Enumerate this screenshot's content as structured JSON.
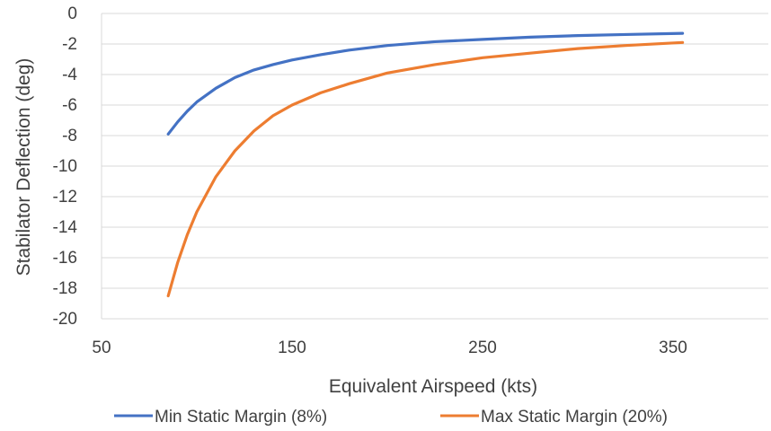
{
  "chart_data": {
    "type": "line",
    "title": "",
    "xlabel": "Equivalent Airspeed (kts)",
    "ylabel": "Stabilator Deflection (deg)",
    "xlim": [
      50,
      400
    ],
    "ylim": [
      -20,
      0
    ],
    "xticks": [
      50,
      150,
      250,
      350
    ],
    "yticks": [
      0,
      -2,
      -4,
      -6,
      -8,
      -10,
      -12,
      -14,
      -16,
      -18,
      -20
    ],
    "grid": "horizontal",
    "legend_position": "bottom",
    "series": [
      {
        "name": "Min Static Margin (8%)",
        "color": "#4472C4",
        "x": [
          85,
          90,
          95,
          100,
          110,
          120,
          130,
          140,
          150,
          165,
          180,
          200,
          225,
          250,
          275,
          300,
          325,
          355
        ],
        "y": [
          -7.9,
          -7.1,
          -6.4,
          -5.8,
          -4.9,
          -4.2,
          -3.7,
          -3.35,
          -3.05,
          -2.7,
          -2.4,
          -2.1,
          -1.85,
          -1.7,
          -1.55,
          -1.45,
          -1.38,
          -1.3
        ]
      },
      {
        "name": "Max Static Margin (20%)",
        "color": "#ED7D31",
        "x": [
          85,
          90,
          95,
          100,
          110,
          120,
          130,
          140,
          150,
          165,
          180,
          200,
          225,
          250,
          275,
          300,
          325,
          355
        ],
        "y": [
          -18.5,
          -16.3,
          -14.5,
          -13.0,
          -10.7,
          -9.0,
          -7.7,
          -6.7,
          -6.0,
          -5.2,
          -4.6,
          -3.9,
          -3.35,
          -2.9,
          -2.6,
          -2.3,
          -2.1,
          -1.9
        ]
      }
    ]
  }
}
